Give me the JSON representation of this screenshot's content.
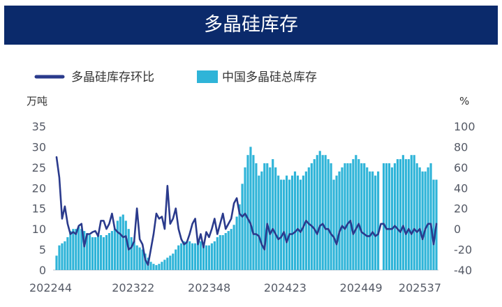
{
  "title": "多晶硅库存",
  "chart_data": {
    "type": "bar+line",
    "legend": {
      "line_label": "多晶硅库存环比",
      "bar_label": "中国多晶硅总库存",
      "placement": "top-left"
    },
    "left_unit": "万吨",
    "right_unit": "%",
    "left_ylim": [
      0,
      35
    ],
    "left_ticks": [
      "0",
      "5",
      "10",
      "15",
      "20",
      "25",
      "30",
      "35"
    ],
    "right_ylim": [
      -40,
      100
    ],
    "right_ticks": [
      "-40",
      "-20",
      "0",
      "20",
      "40",
      "60",
      "80",
      "100"
    ],
    "x_tick_labels": [
      "202244",
      "202322",
      "202348",
      "202423",
      "202449",
      "202537"
    ],
    "colors": {
      "bars": "#2fb4d8",
      "line": "#2a3a8c"
    },
    "series": [
      {
        "name": "中国多晶硅总库存",
        "axis": "left",
        "style": "bar",
        "values": [
          3.5,
          6,
          6.5,
          7,
          8,
          9.5,
          10,
          10,
          10.5,
          10,
          9.5,
          9,
          8.5,
          8,
          8,
          8.5,
          8.5,
          8,
          8.5,
          9,
          9.5,
          10,
          12,
          13,
          13.5,
          12,
          10,
          8,
          7,
          6,
          5.5,
          5,
          4,
          3,
          2,
          1.5,
          1.2,
          1.5,
          2,
          2.5,
          3,
          3.5,
          4,
          5,
          6,
          6.5,
          7,
          7,
          7,
          6.5,
          6.5,
          7,
          7,
          6.5,
          6,
          6,
          6.5,
          7,
          8,
          8.5,
          8.5,
          9,
          9.5,
          10,
          11,
          13,
          16,
          21,
          25,
          28,
          30,
          28,
          26,
          23,
          24,
          26,
          26,
          25,
          27,
          25,
          23,
          22,
          22,
          23,
          22,
          23,
          24,
          23,
          22,
          23,
          24,
          25,
          26,
          27,
          28,
          29,
          28,
          28,
          27,
          26,
          22,
          23,
          24,
          25,
          26,
          26,
          26,
          27,
          28,
          27,
          26,
          26,
          25,
          24,
          24,
          23,
          24,
          0,
          26,
          26,
          26,
          25,
          26,
          27,
          27,
          28,
          27,
          27,
          28,
          28,
          26,
          25,
          24,
          24,
          25,
          26,
          22,
          22
        ]
      },
      {
        "name": "多晶硅库存环比",
        "axis": "right",
        "style": "line",
        "values": [
          70,
          50,
          10,
          22,
          5,
          -5,
          -3,
          -5,
          3,
          5,
          -17,
          -5,
          -5,
          -3,
          -2,
          -7,
          8,
          8,
          0,
          5,
          15,
          0,
          -3,
          -5,
          -8,
          -7,
          -20,
          -18,
          -12,
          20,
          -10,
          -15,
          -30,
          -35,
          -20,
          -5,
          15,
          10,
          12,
          0,
          42,
          5,
          10,
          20,
          0,
          -10,
          -15,
          -13,
          -5,
          5,
          10,
          -15,
          -5,
          -18,
          -3,
          -8,
          0,
          10,
          -5,
          5,
          15,
          0,
          5,
          10,
          25,
          30,
          15,
          12,
          15,
          10,
          5,
          -5,
          -5,
          -7,
          -15,
          -20,
          5,
          -5,
          0,
          -5,
          -10,
          -8,
          -3,
          -13,
          -5,
          -5,
          -3,
          0,
          -3,
          2,
          8,
          5,
          3,
          0,
          -5,
          3,
          5,
          0,
          0,
          -5,
          -8,
          -15,
          -3,
          3,
          0,
          5,
          8,
          -5,
          0,
          5,
          -3,
          -5,
          -7,
          -7,
          -3,
          -7,
          -5,
          5,
          5,
          0,
          0,
          0,
          3,
          0,
          -3,
          3,
          -5,
          0,
          -5,
          0,
          -3,
          0,
          -10,
          0,
          5,
          5,
          -15,
          5
        ]
      }
    ]
  }
}
